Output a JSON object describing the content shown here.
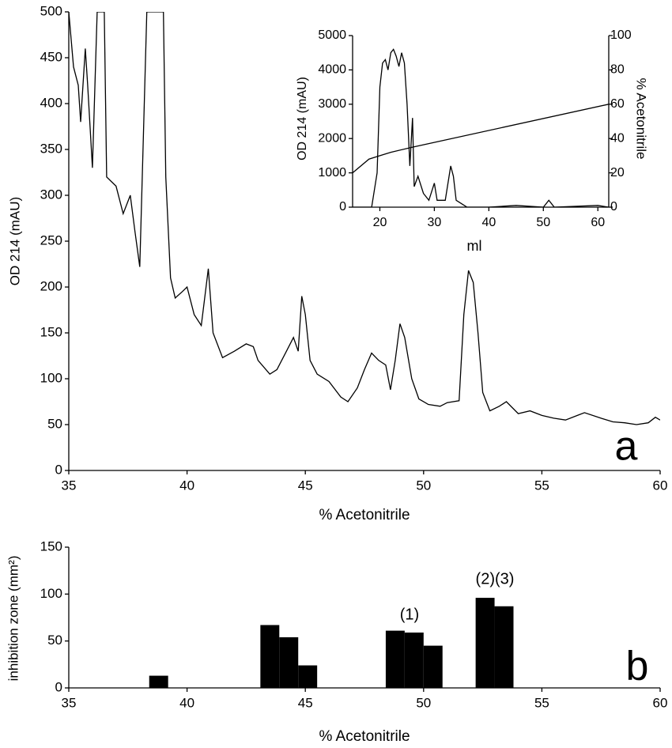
{
  "chart_data": [
    {
      "type": "line",
      "xlabel": "% Acetonitrile",
      "ylabel": "OD 214 (mAU)",
      "annotations": [
        "a"
      ],
      "xlim": [
        35,
        60
      ],
      "xticks": [
        35,
        40,
        45,
        50,
        55,
        60
      ],
      "ylim": [
        0,
        500
      ],
      "yticks": [
        0,
        50,
        100,
        150,
        200,
        250,
        300,
        350,
        400,
        450,
        500
      ],
      "series": [
        {
          "color": "#000000",
          "x": [
            35,
            35.2,
            35.4,
            35.5,
            35.7,
            35.8,
            36.0,
            36.2,
            36.5,
            36.6,
            37.0,
            37.3,
            37.6,
            37.8,
            38.0,
            38.3,
            38.4,
            39.0,
            39.1,
            39.3,
            39.5,
            39.8,
            40.0,
            40.3,
            40.6,
            40.9,
            41.1,
            41.5,
            42.0,
            42.5,
            42.8,
            43.0,
            43.5,
            43.8,
            44.2,
            44.5,
            44.7,
            44.85,
            45.0,
            45.2,
            45.5,
            46.0,
            46.5,
            46.8,
            47.2,
            47.5,
            47.8,
            48.1,
            48.4,
            48.6,
            48.8,
            49.0,
            49.2,
            49.5,
            49.8,
            50.2,
            50.7,
            51.0,
            51.5,
            51.7,
            51.9,
            52.1,
            52.3,
            52.5,
            52.8,
            53.2,
            53.5,
            54.0,
            54.5,
            55.0,
            55.5,
            56.0,
            56.5,
            56.8,
            57.5,
            58.0,
            58.5,
            59.0,
            59.5,
            59.8,
            60.0
          ],
          "values": [
            500,
            440,
            420,
            380,
            460,
            420,
            330,
            500,
            500,
            320,
            310,
            280,
            300,
            260,
            222,
            500,
            500,
            500,
            320,
            210,
            188,
            195,
            200,
            170,
            158,
            220,
            150,
            123,
            130,
            138,
            135,
            120,
            105,
            110,
            130,
            145,
            130,
            190,
            170,
            120,
            105,
            97,
            80,
            75,
            90,
            110,
            128,
            120,
            115,
            88,
            120,
            160,
            145,
            100,
            78,
            72,
            70,
            74,
            76,
            170,
            218,
            205,
            150,
            85,
            65,
            70,
            75,
            62,
            65,
            60,
            57,
            55,
            60,
            63,
            57,
            53,
            52,
            50,
            52,
            58,
            55
          ]
        }
      ]
    },
    {
      "type": "line",
      "xlabel": "ml",
      "ylabel": "OD 214 (mAU)",
      "y2label": "% Acetonitrile",
      "annotations": [],
      "xlim": [
        15,
        62
      ],
      "xticks": [
        20,
        30,
        40,
        50,
        60
      ],
      "ylim": [
        0,
        5000
      ],
      "yticks": [
        0,
        1000,
        2000,
        3000,
        4000,
        5000
      ],
      "y2lim": [
        0,
        100
      ],
      "y2ticks": [
        0,
        20,
        40,
        60,
        80,
        100
      ],
      "series": [
        {
          "color": "#000000",
          "x": [
            15,
            18.5,
            19.5,
            20,
            20.5,
            21,
            21.5,
            22,
            22.5,
            23,
            23.5,
            24,
            24.5,
            25,
            25.5,
            26,
            26.3,
            27,
            28,
            29,
            30,
            30.5,
            32,
            33,
            33.5,
            34,
            35,
            36,
            40,
            45,
            50,
            51,
            52,
            60,
            62
          ],
          "values": [
            0,
            0,
            1000,
            3500,
            4200,
            4300,
            4000,
            4500,
            4600,
            4400,
            4100,
            4500,
            4200,
            3000,
            1200,
            2600,
            600,
            900,
            400,
            200,
            700,
            200,
            200,
            1200,
            900,
            200,
            100,
            0,
            0,
            50,
            0,
            200,
            0,
            50,
            0
          ]
        },
        {
          "color": "#000000",
          "axis": "y2",
          "x": [
            15,
            18,
            20,
            22,
            26,
            62
          ],
          "values": [
            20,
            28,
            30,
            32,
            35,
            60
          ]
        }
      ]
    },
    {
      "type": "bar",
      "xlabel": "% Acetonitrile",
      "ylabel": "inhibition zone (mm²)",
      "annotations": [
        "(1)",
        "(2)(3)",
        "b"
      ],
      "xlim": [
        35,
        60
      ],
      "xticks": [
        35,
        40,
        45,
        50,
        55,
        60
      ],
      "ylim": [
        0,
        150
      ],
      "yticks": [
        0,
        50,
        100,
        150
      ],
      "color": "#000000",
      "x": [
        38.8,
        43.5,
        44.3,
        45.1,
        48.8,
        49.6,
        50.4,
        52.6,
        53.4
      ],
      "values": [
        13,
        67,
        54,
        24,
        61,
        59,
        45,
        96,
        87
      ]
    }
  ]
}
